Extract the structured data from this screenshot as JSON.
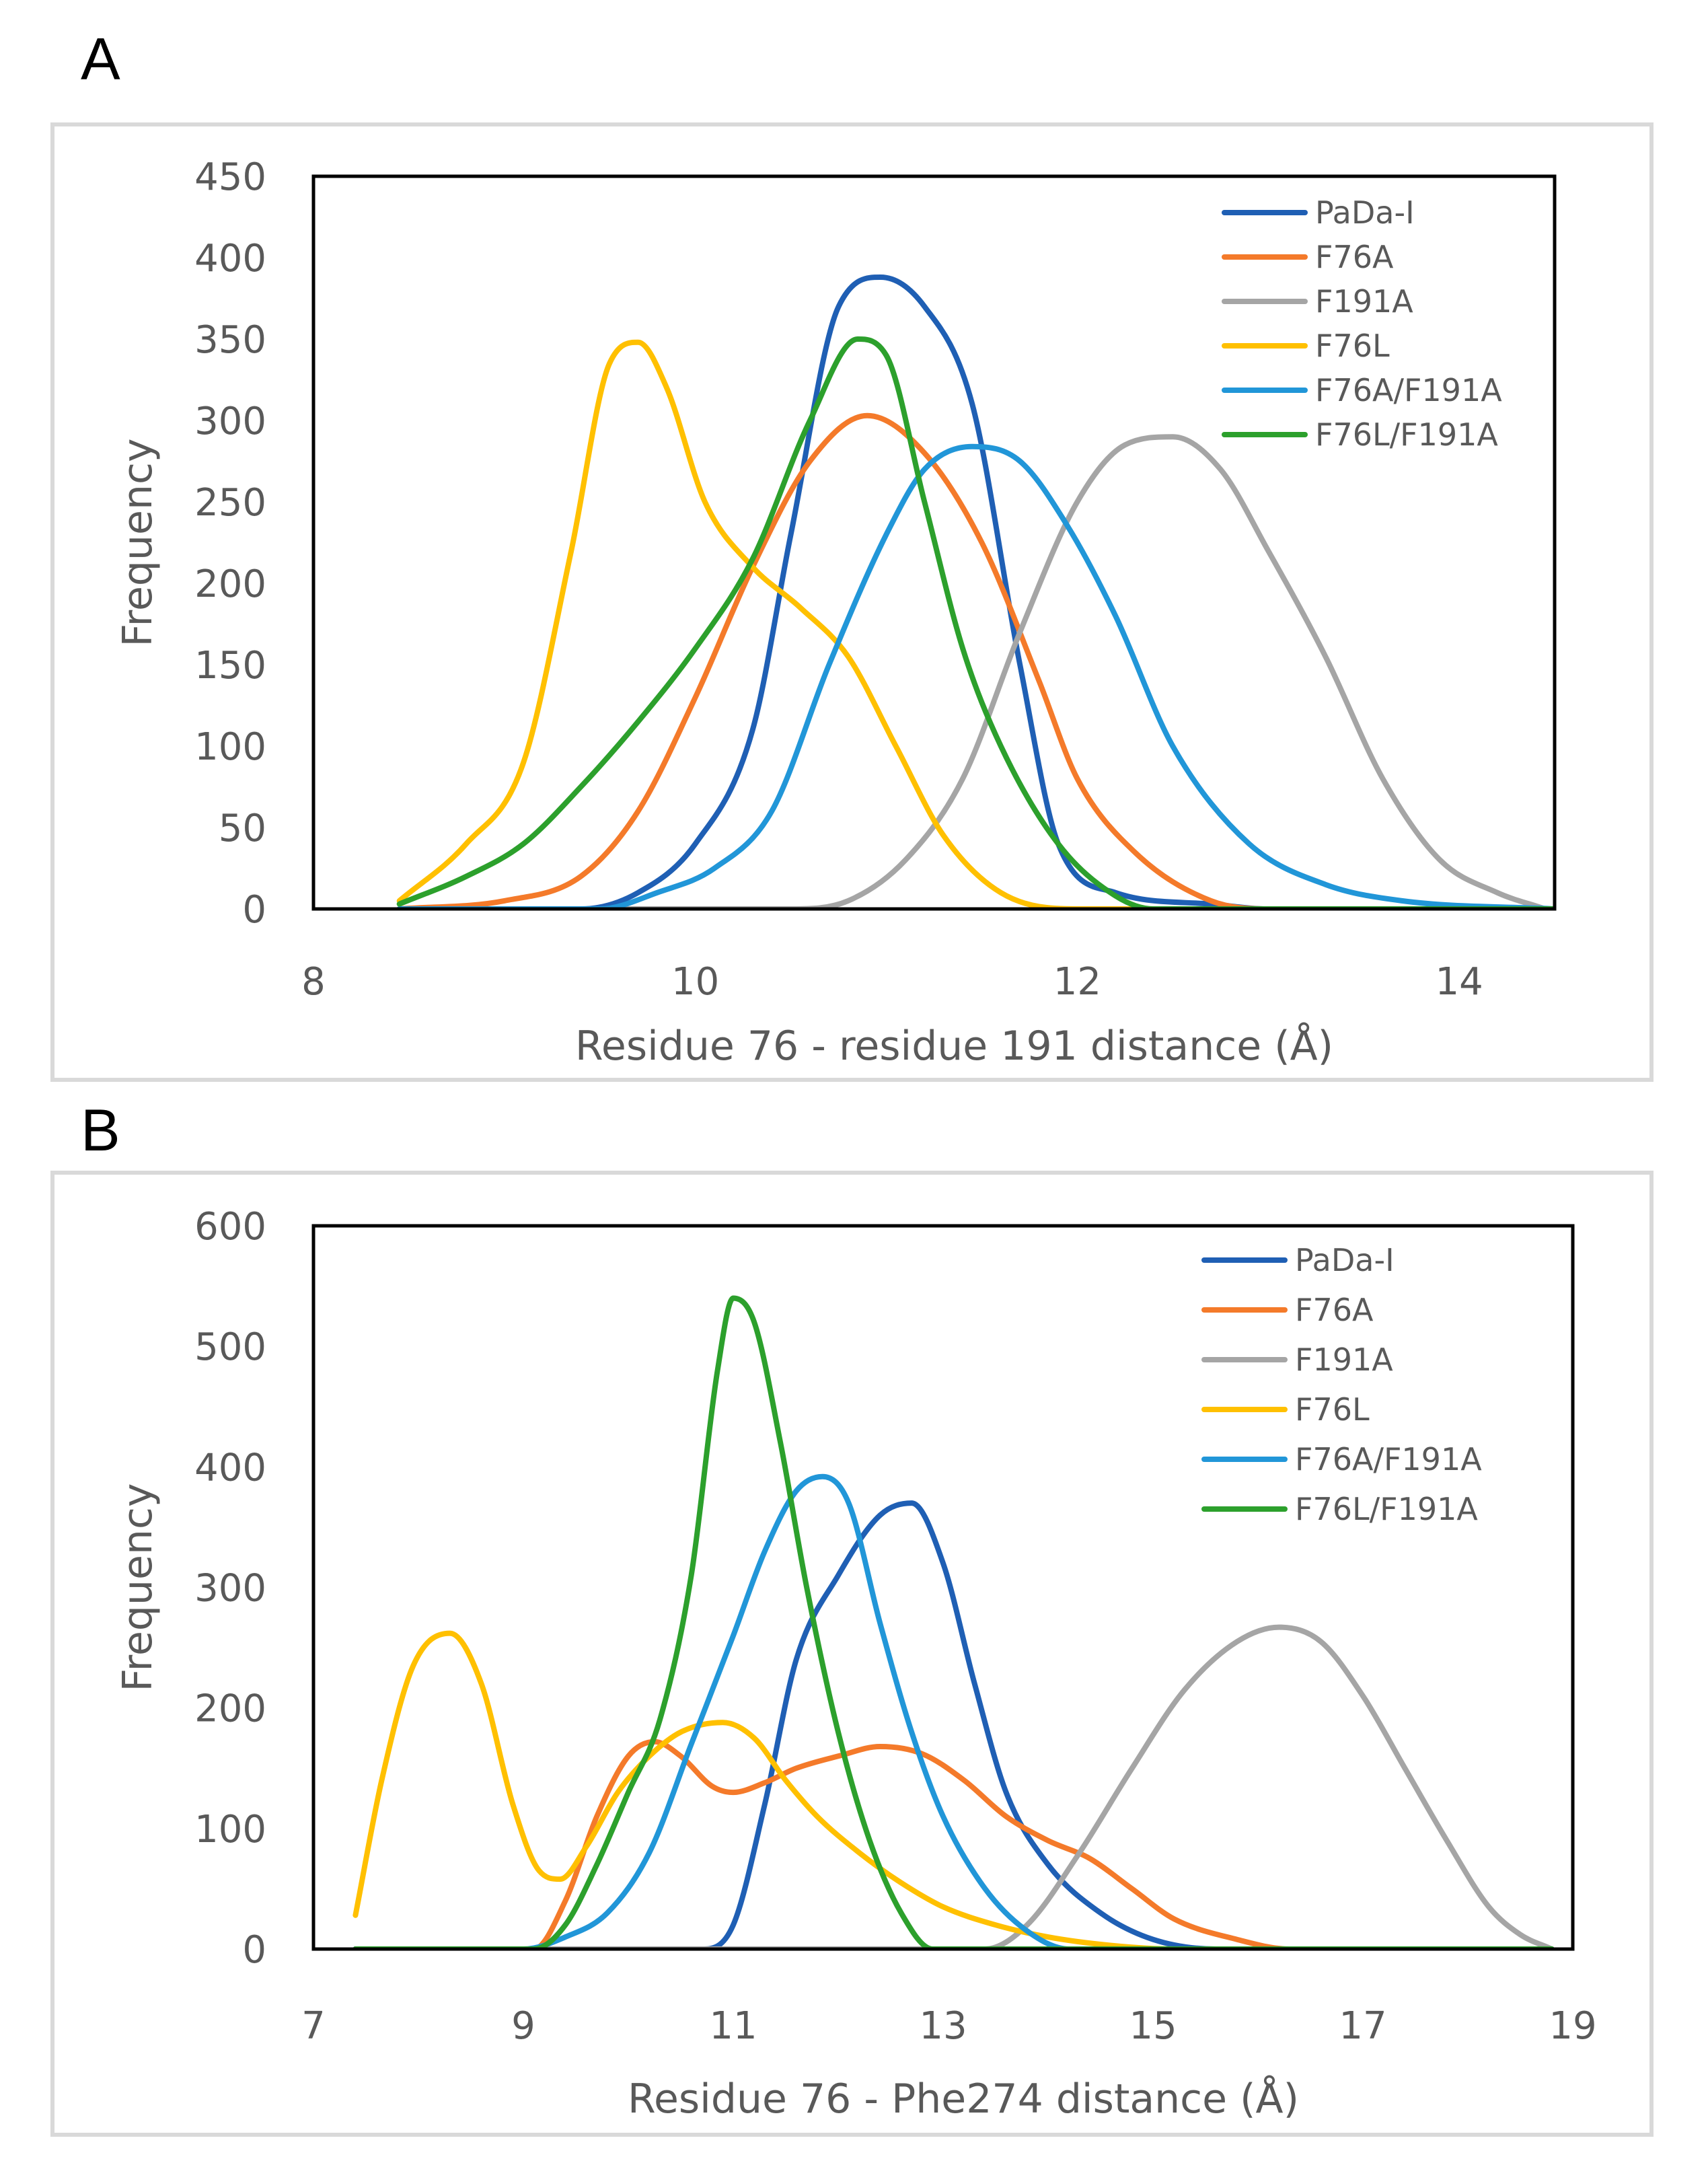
{
  "panels": [
    {
      "letter": "A",
      "chart_data": {
        "type": "line",
        "title": "",
        "xlabel": "Residue 76 - residue 191 distance (Å)",
        "ylabel": "Frequency",
        "xlim": [
          8,
          14.5
        ],
        "ylim": [
          0,
          450
        ],
        "xticks": [
          8,
          10,
          12,
          14
        ],
        "yticks": [
          0,
          50,
          100,
          150,
          200,
          250,
          300,
          350,
          400,
          450
        ],
        "legend": "top-right",
        "series": [
          {
            "name": "PaDa-I",
            "color": "#1f5fb4",
            "x": [
              8.45,
              9.4,
              9.7,
              10.0,
              10.3,
              10.5,
              10.75,
              10.97,
              11.2,
              11.45,
              11.7,
              11.9,
              12.2,
              12.7,
              13.0,
              14.5
            ],
            "y": [
              0,
              0,
              10,
              40,
              110,
              230,
              370,
              388,
              370,
              310,
              150,
              40,
              10,
              3,
              0,
              0
            ]
          },
          {
            "name": "F76A",
            "color": "#f47a2a",
            "x": [
              8.45,
              9.0,
              9.4,
              9.7,
              10.0,
              10.3,
              10.6,
              10.9,
              11.2,
              11.5,
              11.8,
              12.0,
              12.3,
              12.7,
              13.0,
              14.5
            ],
            "y": [
              0,
              5,
              20,
              60,
              130,
              210,
              275,
              303,
              280,
              225,
              140,
              80,
              35,
              5,
              0,
              0
            ]
          },
          {
            "name": "F191A",
            "color": "#a5a5a5",
            "x": [
              8.45,
              10.5,
              10.8,
              11.1,
              11.4,
              11.7,
              12.0,
              12.25,
              12.5,
              12.75,
              13.0,
              13.3,
              13.6,
              13.9,
              14.2,
              14.45
            ],
            "y": [
              0,
              0,
              5,
              30,
              80,
              170,
              250,
              285,
              290,
              270,
              220,
              155,
              80,
              30,
              10,
              0
            ]
          },
          {
            "name": "F76L",
            "color": "#ffc000",
            "x": [
              8.45,
              8.8,
              9.1,
              9.35,
              9.55,
              9.7,
              9.85,
              10.05,
              10.3,
              10.55,
              10.8,
              11.05,
              11.3,
              11.6,
              12.0,
              14.5
            ],
            "y": [
              5,
              40,
              90,
              220,
              335,
              348,
              320,
              250,
              210,
              185,
              155,
              100,
              45,
              10,
              0,
              0
            ]
          },
          {
            "name": "F76A/F191A",
            "color": "#2196d8",
            "x": [
              8.45,
              9.5,
              9.8,
              10.1,
              10.4,
              10.7,
              11.0,
              11.2,
              11.45,
              11.7,
              11.95,
              12.2,
              12.5,
              12.9,
              13.3,
              13.7,
              14.5
            ],
            "y": [
              0,
              0,
              10,
              25,
              60,
              150,
              230,
              270,
              284,
              275,
              235,
              180,
              100,
              40,
              15,
              5,
              0
            ]
          },
          {
            "name": "F76L/F191A",
            "color": "#2ca02c",
            "x": [
              8.45,
              8.8,
              9.1,
              9.4,
              9.7,
              10.0,
              10.3,
              10.6,
              10.85,
              11.0,
              11.2,
              11.4,
              11.6,
              11.9,
              12.2,
              12.4,
              14.5
            ],
            "y": [
              3,
              20,
              40,
              75,
              115,
              160,
              215,
              300,
              350,
              340,
              250,
              160,
              100,
              40,
              8,
              0,
              0
            ]
          }
        ]
      }
    },
    {
      "letter": "B",
      "chart_data": {
        "type": "line",
        "title": "",
        "xlabel": "Residue 76 - Phe274 distance (Å)",
        "ylabel": "Frequency",
        "xlim": [
          7,
          19
        ],
        "ylim": [
          0,
          600
        ],
        "xticks": [
          7,
          9,
          11,
          13,
          15,
          17,
          19
        ],
        "yticks": [
          0,
          100,
          200,
          300,
          400,
          500,
          600
        ],
        "legend": "top-right",
        "series": [
          {
            "name": "PaDa-I",
            "color": "#1f5fb4",
            "x": [
              7.4,
              10.7,
              11.0,
              11.3,
              11.6,
              12.0,
              12.4,
              12.7,
              13.0,
              13.3,
              13.6,
              14.0,
              14.5,
              15.0,
              15.6,
              18.8
            ],
            "y": [
              0,
              0,
              20,
              120,
              240,
              310,
              360,
              370,
              320,
              220,
              130,
              70,
              30,
              8,
              0,
              0
            ]
          },
          {
            "name": "F76A",
            "color": "#f47a2a",
            "x": [
              7.4,
              9.1,
              9.4,
              9.7,
              10.0,
              10.25,
              10.5,
              10.8,
              11.0,
              11.3,
              11.6,
              12.0,
              12.4,
              12.8,
              13.2,
              13.6,
              14.0,
              14.4,
              14.8,
              15.2,
              15.8,
              16.3,
              18.8
            ],
            "y": [
              0,
              0,
              40,
              110,
              160,
              172,
              160,
              135,
              130,
              138,
              150,
              160,
              168,
              162,
              140,
              110,
              90,
              75,
              50,
              25,
              8,
              0,
              0
            ]
          },
          {
            "name": "F191A",
            "color": "#a5a5a5",
            "x": [
              7.4,
              13.4,
              13.8,
              14.3,
              14.8,
              15.3,
              15.8,
              16.2,
              16.6,
              17.0,
              17.4,
              17.8,
              18.2,
              18.5,
              18.8
            ],
            "y": [
              0,
              0,
              20,
              80,
              150,
              215,
              255,
              267,
              255,
              210,
              150,
              90,
              35,
              12,
              0
            ]
          },
          {
            "name": "F76L",
            "color": "#ffc000",
            "x": [
              7.4,
              7.65,
              7.95,
              8.3,
              8.6,
              8.9,
              9.15,
              9.35,
              9.6,
              9.9,
              10.2,
              10.5,
              10.9,
              11.2,
              11.5,
              11.8,
              12.2,
              12.6,
              13.0,
              13.5,
              14.0,
              14.6,
              15.2,
              18.8
            ],
            "y": [
              28,
              140,
              235,
              262,
              220,
              120,
              65,
              58,
              85,
              130,
              160,
              180,
              188,
              175,
              140,
              110,
              80,
              55,
              35,
              20,
              10,
              3,
              0,
              0
            ]
          },
          {
            "name": "F76A/F191A",
            "color": "#2196d8",
            "x": [
              7.4,
              9.0,
              9.4,
              9.8,
              10.2,
              10.6,
              11.0,
              11.3,
              11.6,
              11.85,
              12.1,
              12.4,
              12.7,
              13.0,
              13.4,
              13.8,
              14.2,
              18.8
            ],
            "y": [
              0,
              0,
              10,
              30,
              80,
              170,
              260,
              330,
              380,
              392,
              370,
              270,
              180,
              110,
              50,
              15,
              0,
              0
            ]
          },
          {
            "name": "F76L/F191A",
            "color": "#2ca02c",
            "x": [
              7.4,
              9.1,
              9.4,
              9.7,
              10.0,
              10.3,
              10.6,
              10.85,
              11.0,
              11.2,
              11.45,
              11.7,
              12.0,
              12.3,
              12.6,
              12.9,
              18.8
            ],
            "y": [
              0,
              0,
              20,
              70,
              130,
              190,
              310,
              480,
              540,
              520,
              420,
              300,
              180,
              90,
              30,
              0,
              0
            ]
          }
        ]
      }
    }
  ]
}
